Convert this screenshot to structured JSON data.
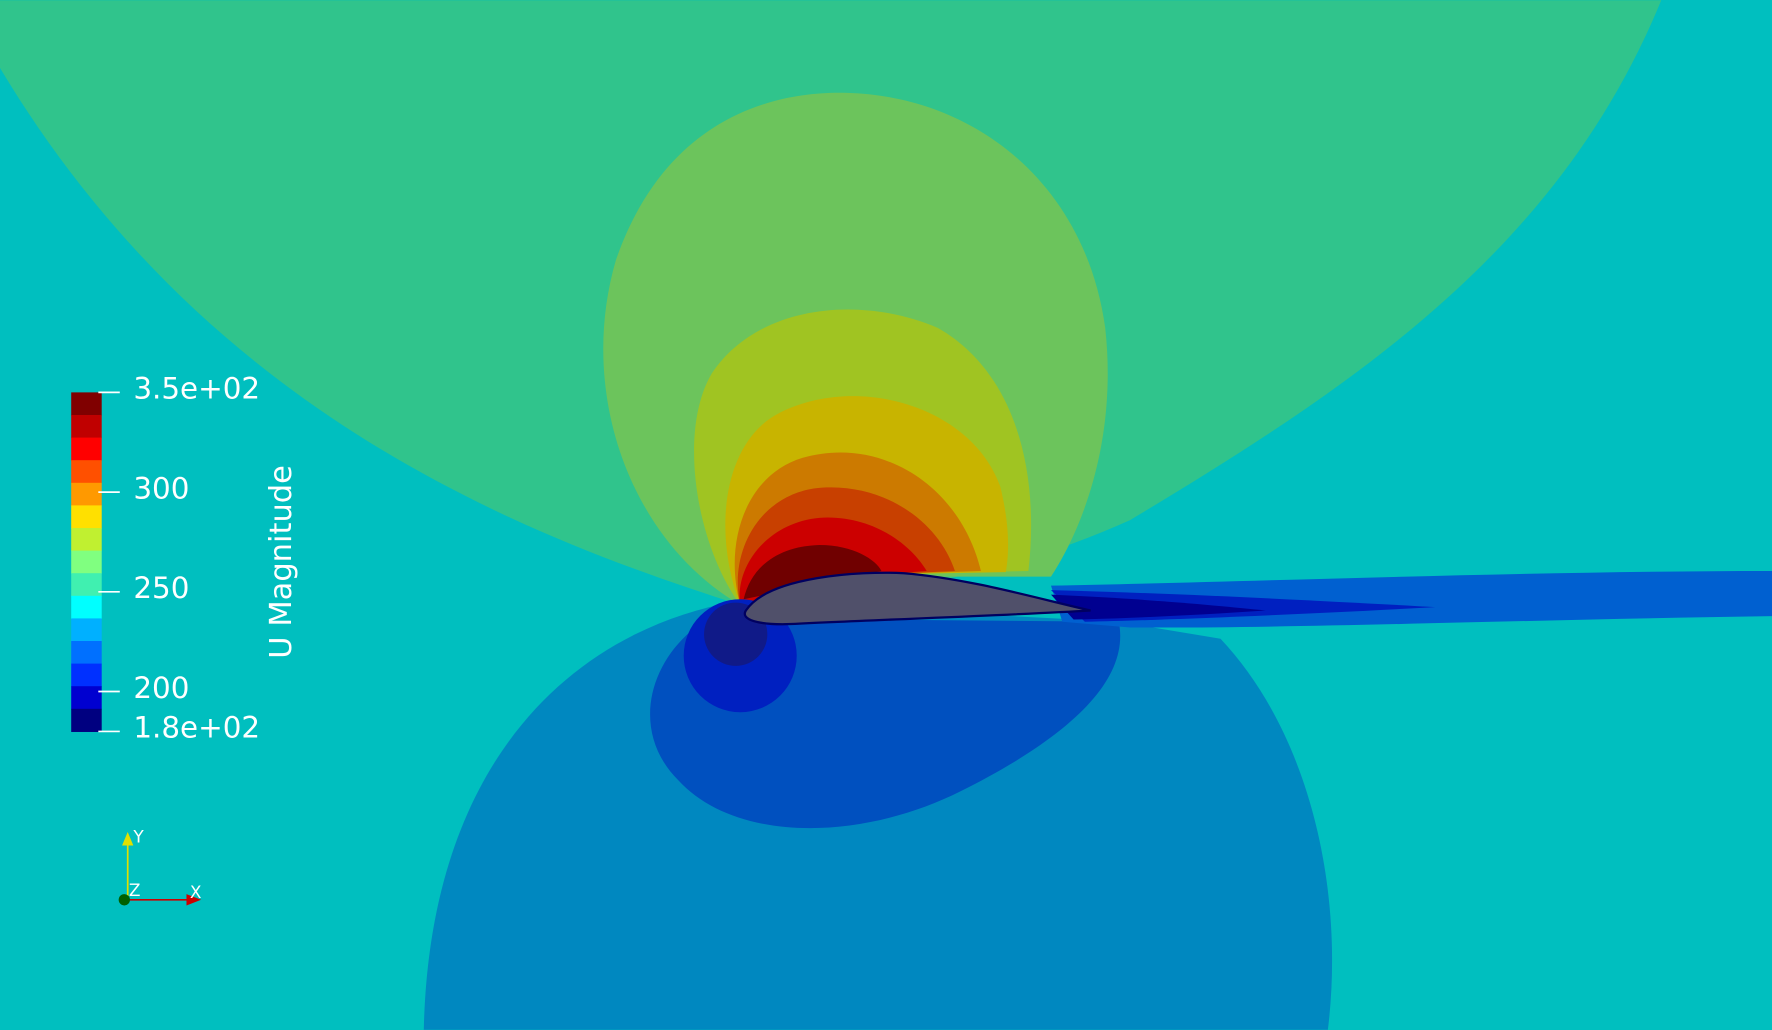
{
  "colorbar": {
    "title": "U Magnitude",
    "range": [
      180,
      350
    ],
    "ticks": [
      {
        "value": 350,
        "label": "3.5e+02"
      },
      300,
      250,
      200,
      {
        "value": 180,
        "label": "1.8e+02"
      }
    ]
  },
  "axes": {
    "y": "Y",
    "z": "Z",
    "x": "X"
  }
}
